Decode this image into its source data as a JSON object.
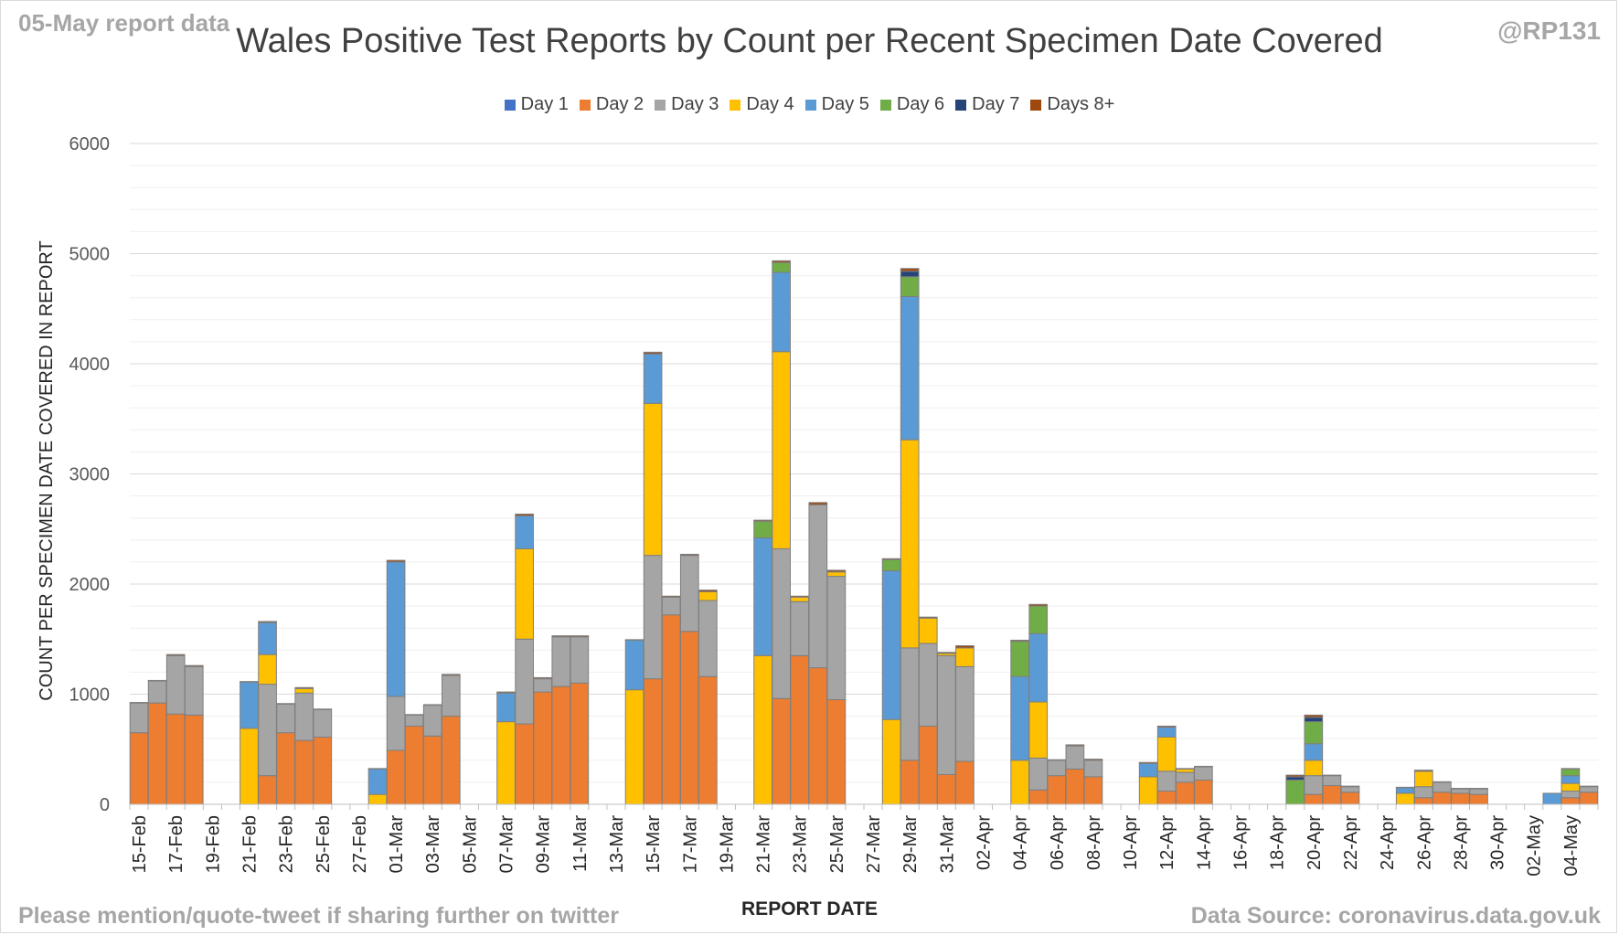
{
  "header": {
    "report_date_label": "05-May report data",
    "handle": "@RP131",
    "title": "Wales Positive Test Reports by Count per Recent Specimen Date Covered"
  },
  "footer": {
    "left": "Please mention/quote-tweet if sharing further on twitter",
    "right": "Data Source: coronavirus.data.gov.uk"
  },
  "chart_data": {
    "type": "bar",
    "stacked": true,
    "title": "Wales Positive Test Reports by Count per Recent Specimen Date Covered",
    "xlabel": "REPORT DATE",
    "ylabel": "COUNT PER SPECIMEN DATE COVERED IN REPORT",
    "ylim": [
      0,
      6000
    ],
    "y_ticks": [
      0,
      1000,
      2000,
      3000,
      4000,
      5000,
      6000
    ],
    "grid": true,
    "legend_position": "top",
    "categories": [
      "15-Feb",
      "16-Feb",
      "17-Feb",
      "18-Feb",
      "19-Feb",
      "20-Feb",
      "21-Feb",
      "22-Feb",
      "23-Feb",
      "24-Feb",
      "25-Feb",
      "26-Feb",
      "27-Feb",
      "28-Feb",
      "01-Mar",
      "02-Mar",
      "03-Mar",
      "04-Mar",
      "05-Mar",
      "06-Mar",
      "07-Mar",
      "08-Mar",
      "09-Mar",
      "10-Mar",
      "11-Mar",
      "12-Mar",
      "13-Mar",
      "14-Mar",
      "15-Mar",
      "16-Mar",
      "17-Mar",
      "18-Mar",
      "19-Mar",
      "20-Mar",
      "21-Mar",
      "22-Mar",
      "23-Mar",
      "24-Mar",
      "25-Mar",
      "26-Mar",
      "27-Mar",
      "28-Mar",
      "29-Mar",
      "30-Mar",
      "31-Mar",
      "01-Apr",
      "02-Apr",
      "03-Apr",
      "04-Apr",
      "05-Apr",
      "06-Apr",
      "07-Apr",
      "08-Apr",
      "09-Apr",
      "10-Apr",
      "11-Apr",
      "12-Apr",
      "13-Apr",
      "14-Apr",
      "15-Apr",
      "16-Apr",
      "17-Apr",
      "18-Apr",
      "19-Apr",
      "20-Apr",
      "21-Apr",
      "22-Apr",
      "23-Apr",
      "24-Apr",
      "25-Apr",
      "26-Apr",
      "27-Apr",
      "28-Apr",
      "29-Apr",
      "30-Apr",
      "01-May",
      "02-May",
      "03-May",
      "04-May",
      "05-May"
    ],
    "tick_labels": [
      "15-Feb",
      "17-Feb",
      "19-Feb",
      "21-Feb",
      "23-Feb",
      "25-Feb",
      "27-Feb",
      "01-Mar",
      "03-Mar",
      "05-Mar",
      "07-Mar",
      "09-Mar",
      "11-Mar",
      "13-Mar",
      "15-Mar",
      "17-Mar",
      "19-Mar",
      "21-Mar",
      "23-Mar",
      "25-Mar",
      "27-Mar",
      "29-Mar",
      "31-Mar",
      "02-Apr",
      "04-Apr",
      "06-Apr",
      "08-Apr",
      "10-Apr",
      "12-Apr",
      "14-Apr",
      "16-Apr",
      "18-Apr",
      "20-Apr",
      "22-Apr",
      "24-Apr",
      "26-Apr",
      "28-Apr",
      "30-Apr",
      "02-May",
      "04-May"
    ],
    "series": [
      {
        "name": "Day 1",
        "color": "#4472c4",
        "values": [
          0,
          0,
          0,
          0,
          0,
          0,
          0,
          0,
          0,
          0,
          0,
          0,
          0,
          0,
          0,
          0,
          0,
          0,
          0,
          0,
          0,
          0,
          0,
          0,
          0,
          0,
          0,
          0,
          0,
          0,
          0,
          0,
          0,
          0,
          0,
          0,
          0,
          0,
          0,
          0,
          0,
          0,
          0,
          0,
          0,
          0,
          0,
          0,
          0,
          0,
          0,
          0,
          0,
          0,
          0,
          0,
          0,
          0,
          0,
          0,
          0,
          0,
          0,
          0,
          0,
          0,
          0,
          0,
          0,
          0,
          0,
          0,
          0,
          0,
          0,
          0,
          0,
          0,
          0,
          0
        ]
      },
      {
        "name": "Day 2",
        "color": "#ed7d31",
        "values": [
          650,
          920,
          820,
          810,
          0,
          0,
          0,
          260,
          650,
          580,
          610,
          0,
          0,
          0,
          490,
          710,
          620,
          800,
          0,
          0,
          0,
          730,
          1020,
          1070,
          1100,
          0,
          0,
          0,
          1140,
          1720,
          1570,
          1160,
          0,
          0,
          0,
          960,
          1350,
          1240,
          950,
          0,
          0,
          0,
          400,
          710,
          270,
          390,
          0,
          0,
          0,
          130,
          260,
          320,
          250,
          0,
          0,
          0,
          120,
          200,
          220,
          0,
          0,
          0,
          0,
          0,
          90,
          170,
          110,
          0,
          0,
          0,
          60,
          110,
          100,
          90,
          0,
          0,
          0,
          0,
          60,
          110
        ]
      },
      {
        "name": "Day 3",
        "color": "#a5a5a5",
        "values": [
          270,
          200,
          530,
          440,
          0,
          0,
          0,
          830,
          260,
          430,
          250,
          0,
          0,
          0,
          490,
          100,
          280,
          370,
          0,
          0,
          0,
          770,
          120,
          450,
          420,
          0,
          0,
          0,
          1120,
          160,
          690,
          690,
          0,
          0,
          0,
          1360,
          490,
          1480,
          1120,
          0,
          0,
          0,
          1020,
          750,
          1080,
          860,
          0,
          0,
          0,
          290,
          140,
          210,
          150,
          0,
          0,
          0,
          180,
          90,
          120,
          0,
          0,
          0,
          0,
          0,
          170,
          90,
          50,
          0,
          0,
          0,
          100,
          90,
          40,
          50,
          0,
          0,
          0,
          0,
          60,
          50
        ]
      },
      {
        "name": "Day 4",
        "color": "#ffc000",
        "values": [
          0,
          0,
          0,
          0,
          0,
          0,
          690,
          270,
          0,
          40,
          0,
          0,
          0,
          90,
          0,
          0,
          0,
          0,
          0,
          0,
          750,
          820,
          0,
          0,
          0,
          0,
          0,
          1040,
          1380,
          0,
          0,
          80,
          0,
          0,
          1350,
          1790,
          40,
          0,
          40,
          0,
          0,
          770,
          1890,
          230,
          20,
          170,
          0,
          0,
          400,
          510,
          0,
          0,
          0,
          0,
          0,
          250,
          310,
          30,
          0,
          0,
          0,
          0,
          0,
          0,
          140,
          0,
          0,
          0,
          0,
          100,
          140,
          0,
          0,
          0,
          0,
          0,
          0,
          0,
          70,
          0
        ]
      },
      {
        "name": "Day 5",
        "color": "#5b9bd5",
        "values": [
          0,
          0,
          0,
          0,
          0,
          0,
          420,
          290,
          0,
          0,
          0,
          0,
          0,
          230,
          1220,
          0,
          0,
          0,
          0,
          0,
          260,
          300,
          0,
          0,
          0,
          0,
          0,
          450,
          450,
          0,
          0,
          0,
          0,
          0,
          1070,
          720,
          0,
          0,
          0,
          0,
          0,
          1350,
          1300,
          0,
          0,
          0,
          0,
          0,
          760,
          620,
          0,
          0,
          0,
          0,
          0,
          120,
          90,
          0,
          0,
          0,
          0,
          0,
          0,
          0,
          150,
          0,
          0,
          0,
          0,
          50,
          0,
          0,
          0,
          0,
          0,
          0,
          0,
          100,
          70,
          0
        ]
      },
      {
        "name": "Day 6",
        "color": "#70ad47",
        "values": [
          0,
          0,
          0,
          0,
          0,
          0,
          0,
          0,
          0,
          0,
          0,
          0,
          0,
          0,
          0,
          0,
          0,
          0,
          0,
          0,
          0,
          0,
          0,
          0,
          0,
          0,
          0,
          0,
          0,
          0,
          0,
          0,
          0,
          0,
          150,
          90,
          0,
          0,
          0,
          0,
          0,
          100,
          180,
          0,
          0,
          0,
          0,
          0,
          320,
          250,
          0,
          0,
          0,
          0,
          0,
          0,
          0,
          0,
          0,
          0,
          0,
          0,
          0,
          220,
          200,
          0,
          0,
          0,
          0,
          0,
          0,
          0,
          0,
          0,
          0,
          0,
          0,
          0,
          60,
          0
        ]
      },
      {
        "name": "Day 7",
        "color": "#264478",
        "values": [
          0,
          0,
          0,
          0,
          0,
          0,
          0,
          0,
          0,
          0,
          0,
          0,
          0,
          0,
          0,
          0,
          0,
          0,
          0,
          0,
          0,
          0,
          0,
          0,
          0,
          0,
          0,
          0,
          0,
          0,
          0,
          0,
          0,
          0,
          0,
          0,
          0,
          0,
          0,
          0,
          0,
          0,
          50,
          0,
          0,
          0,
          0,
          0,
          0,
          0,
          0,
          0,
          0,
          0,
          0,
          0,
          0,
          0,
          0,
          0,
          0,
          0,
          0,
          30,
          40,
          0,
          0,
          0,
          0,
          0,
          0,
          0,
          0,
          0,
          0,
          0,
          0,
          0,
          0,
          0
        ]
      },
      {
        "name": "Days 8+",
        "color": "#9e480e",
        "values": [
          5,
          5,
          10,
          10,
          0,
          0,
          5,
          10,
          5,
          10,
          5,
          0,
          0,
          5,
          15,
          5,
          5,
          10,
          0,
          0,
          10,
          15,
          10,
          10,
          10,
          0,
          0,
          5,
          15,
          10,
          10,
          15,
          0,
          0,
          10,
          15,
          10,
          20,
          15,
          0,
          0,
          10,
          25,
          10,
          10,
          20,
          0,
          0,
          10,
          15,
          5,
          10,
          10,
          0,
          0,
          10,
          10,
          5,
          5,
          0,
          0,
          0,
          0,
          15,
          20,
          5,
          5,
          0,
          0,
          5,
          10,
          5,
          5,
          5,
          0,
          0,
          0,
          0,
          5,
          5
        ]
      }
    ]
  }
}
